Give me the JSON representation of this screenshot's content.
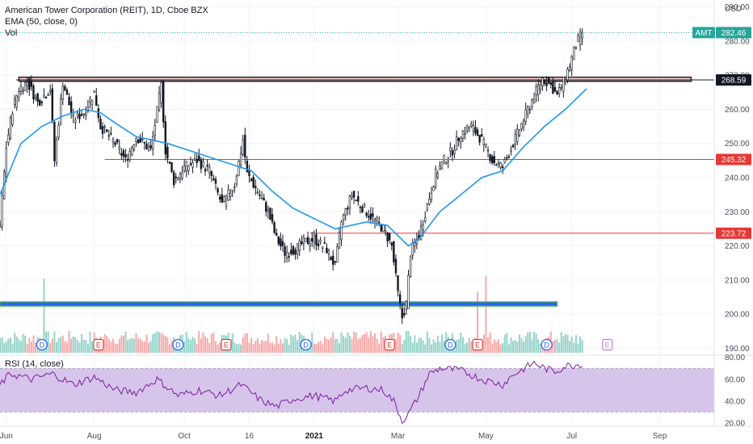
{
  "header": {
    "symbol_line": "American Tower Corporation (REIT), 1D, Cboe BZX",
    "ema_line": "EMA (50, close, 0)",
    "vol_line": "Vol",
    "rsi_line": "RSI (14, close)"
  },
  "price_axis": {
    "currency": "USD",
    "ticks": [
      190,
      200,
      210,
      220,
      230,
      240,
      250,
      260,
      270,
      280,
      290
    ],
    "range": [
      188,
      292
    ]
  },
  "rsi_axis": {
    "ticks": [
      20,
      40,
      60,
      80
    ],
    "range": [
      17,
      82
    ],
    "band": [
      30,
      70
    ]
  },
  "time_axis": {
    "labels": [
      {
        "text": "Jun",
        "t": 3,
        "bold": false
      },
      {
        "text": "Aug",
        "t": 45,
        "bold": false
      },
      {
        "text": "Oct",
        "t": 88,
        "bold": false
      },
      {
        "text": "16",
        "t": 119,
        "bold": false
      },
      {
        "text": "2021",
        "t": 150,
        "bold": true
      },
      {
        "text": "Mar",
        "t": 190,
        "bold": false
      },
      {
        "text": "May",
        "t": 232,
        "bold": false
      },
      {
        "text": "Jul",
        "t": 273,
        "bold": false
      },
      {
        "text": "Sep",
        "t": 315,
        "bold": false
      }
    ],
    "t_range": [
      0,
      341
    ]
  },
  "tags": {
    "last_symbol": "AMT",
    "last_price": "282.46",
    "levels": [
      {
        "value": 268.59,
        "label": "268.59",
        "style": "black"
      },
      {
        "value": 245.32,
        "label": "245.32",
        "style": "red"
      },
      {
        "value": 223.72,
        "label": "223.72",
        "style": "red"
      }
    ]
  },
  "zones": [
    {
      "kind": "resistance",
      "from_t": 9,
      "to_t": 330,
      "low": 268.2,
      "high": 269.4,
      "fill": "#f4c7c7",
      "border": "#222222"
    },
    {
      "kind": "support",
      "from_t": 0,
      "to_t": 266,
      "low": 202.4,
      "high": 203.6,
      "fill": "#2962ff",
      "border": "#4caf50"
    }
  ],
  "red_lines": [
    {
      "value": 245.32,
      "from_t": 50
    },
    {
      "value": 223.72,
      "from_t": 148
    }
  ],
  "events": [
    {
      "type": "D",
      "t": 20
    },
    {
      "type": "E",
      "t": 47
    },
    {
      "type": "D",
      "t": 85
    },
    {
      "type": "E",
      "t": 108
    },
    {
      "type": "D",
      "t": 146
    },
    {
      "type": "E",
      "t": 186
    },
    {
      "type": "D",
      "t": 215
    },
    {
      "type": "E",
      "t": 228
    },
    {
      "type": "D",
      "t": 261
    },
    {
      "type": "E",
      "t": 290
    }
  ],
  "chart_data": {
    "type": "candlestick",
    "title": "American Tower Corporation (REIT), 1D, Cboe BZX",
    "x_unit": "trading-day index",
    "price_keyframes": [
      [
        0,
        226
      ],
      [
        3,
        249
      ],
      [
        6,
        260
      ],
      [
        9,
        266
      ],
      [
        13,
        268
      ],
      [
        18,
        262
      ],
      [
        24,
        266
      ],
      [
        26,
        245
      ],
      [
        30,
        268
      ],
      [
        35,
        257
      ],
      [
        40,
        259
      ],
      [
        45,
        265
      ],
      [
        48,
        255
      ],
      [
        55,
        250
      ],
      [
        60,
        245
      ],
      [
        65,
        252
      ],
      [
        72,
        248
      ],
      [
        77,
        267
      ],
      [
        79,
        248
      ],
      [
        83,
        239
      ],
      [
        88,
        243
      ],
      [
        94,
        245
      ],
      [
        100,
        242
      ],
      [
        106,
        232
      ],
      [
        112,
        238
      ],
      [
        116,
        251
      ],
      [
        118,
        241
      ],
      [
        123,
        236
      ],
      [
        128,
        230
      ],
      [
        132,
        222
      ],
      [
        136,
        218
      ],
      [
        141,
        219
      ],
      [
        145,
        221
      ],
      [
        150,
        222
      ],
      [
        156,
        219
      ],
      [
        160,
        214
      ],
      [
        163,
        227
      ],
      [
        168,
        235
      ],
      [
        172,
        232
      ],
      [
        178,
        228
      ],
      [
        183,
        225
      ],
      [
        187,
        220
      ],
      [
        190,
        206
      ],
      [
        192,
        199
      ],
      [
        194,
        203
      ],
      [
        196,
        218
      ],
      [
        200,
        223
      ],
      [
        204,
        232
      ],
      [
        208,
        241
      ],
      [
        212,
        245
      ],
      [
        216,
        248
      ],
      [
        220,
        253
      ],
      [
        225,
        255
      ],
      [
        230,
        251
      ],
      [
        235,
        245
      ],
      [
        240,
        243
      ],
      [
        245,
        250
      ],
      [
        250,
        257
      ],
      [
        255,
        264
      ],
      [
        259,
        269
      ],
      [
        263,
        267
      ],
      [
        266,
        264
      ],
      [
        269,
        268
      ],
      [
        272,
        273
      ],
      [
        275,
        279
      ],
      [
        278,
        282.46
      ]
    ],
    "ema50_keyframes": [
      [
        0,
        235
      ],
      [
        10,
        250
      ],
      [
        20,
        255
      ],
      [
        30,
        258
      ],
      [
        40,
        260
      ],
      [
        48,
        259
      ],
      [
        55,
        256
      ],
      [
        65,
        252
      ],
      [
        80,
        250
      ],
      [
        95,
        247
      ],
      [
        110,
        244
      ],
      [
        120,
        242
      ],
      [
        130,
        236
      ],
      [
        140,
        231
      ],
      [
        150,
        228
      ],
      [
        160,
        225
      ],
      [
        175,
        227
      ],
      [
        185,
        226
      ],
      [
        190,
        223
      ],
      [
        195,
        220
      ],
      [
        200,
        222
      ],
      [
        210,
        230
      ],
      [
        220,
        235
      ],
      [
        230,
        240
      ],
      [
        240,
        242
      ],
      [
        250,
        249
      ],
      [
        260,
        255
      ],
      [
        270,
        260
      ],
      [
        280,
        266
      ]
    ],
    "rsi_keyframes": [
      [
        0,
        55
      ],
      [
        5,
        65
      ],
      [
        15,
        60
      ],
      [
        25,
        65
      ],
      [
        35,
        55
      ],
      [
        45,
        62
      ],
      [
        55,
        50
      ],
      [
        65,
        48
      ],
      [
        75,
        60
      ],
      [
        85,
        45
      ],
      [
        95,
        50
      ],
      [
        105,
        45
      ],
      [
        115,
        55
      ],
      [
        125,
        40
      ],
      [
        132,
        35
      ],
      [
        140,
        42
      ],
      [
        150,
        45
      ],
      [
        160,
        40
      ],
      [
        165,
        50
      ],
      [
        175,
        52
      ],
      [
        183,
        50
      ],
      [
        188,
        40
      ],
      [
        192,
        22
      ],
      [
        195,
        28
      ],
      [
        200,
        45
      ],
      [
        205,
        65
      ],
      [
        210,
        70
      ],
      [
        220,
        68
      ],
      [
        230,
        60
      ],
      [
        240,
        55
      ],
      [
        245,
        64
      ],
      [
        255,
        75
      ],
      [
        260,
        70
      ],
      [
        265,
        67
      ],
      [
        270,
        72
      ],
      [
        278,
        74
      ]
    ],
    "volume_range": [
      0,
      100
    ],
    "volume_spikes": [
      [
        21,
        85
      ],
      [
        28,
        40
      ],
      [
        35,
        45
      ],
      [
        52,
        38
      ],
      [
        83,
        42
      ],
      [
        90,
        40
      ],
      [
        110,
        38
      ],
      [
        140,
        45
      ],
      [
        160,
        38
      ],
      [
        188,
        55
      ],
      [
        194,
        60
      ],
      [
        200,
        40
      ],
      [
        228,
        70
      ],
      [
        232,
        88
      ],
      [
        261,
        40
      ],
      [
        266,
        38
      ],
      [
        276,
        25
      ]
    ],
    "xlabel": "",
    "ylabel": ""
  }
}
